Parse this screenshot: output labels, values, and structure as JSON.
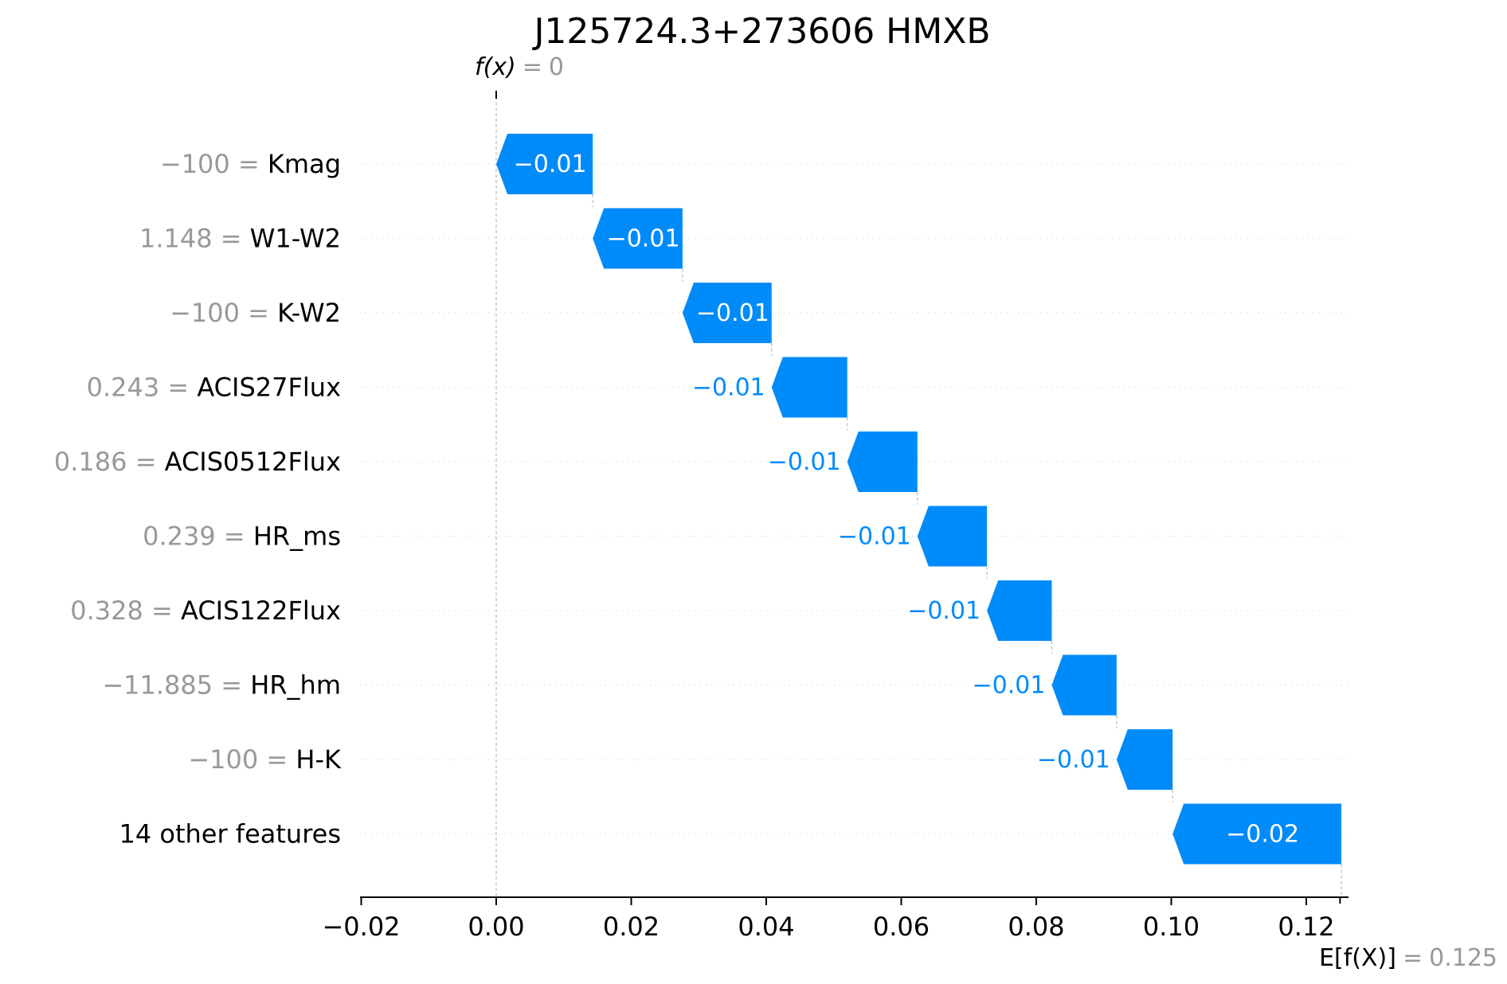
{
  "chart_data": {
    "type": "waterfall",
    "title": "J125724.3+273606 HMXB",
    "top_annotation": {
      "label": "f(x)",
      "equals": "=",
      "value": "0"
    },
    "bottom_annotation": {
      "label": "E[f(X)]",
      "equals": "=",
      "value": "0.125"
    },
    "base_value": 0.125,
    "output_value": 0,
    "xlim": [
      -0.02,
      0.126
    ],
    "xticks": [
      {
        "value": -0.02,
        "label": "−0.02"
      },
      {
        "value": 0.0,
        "label": "0.00"
      },
      {
        "value": 0.02,
        "label": "0.02"
      },
      {
        "value": 0.04,
        "label": "0.04"
      },
      {
        "value": 0.06,
        "label": "0.06"
      },
      {
        "value": 0.08,
        "label": "0.08"
      },
      {
        "value": 0.1,
        "label": "0.10"
      },
      {
        "value": 0.12,
        "label": "0.12"
      }
    ],
    "bars": [
      {
        "feature_value": "−100",
        "feature": "Kmag",
        "start": 0.0143,
        "end": 0.0,
        "label": "−0.01"
      },
      {
        "feature_value": "1.148",
        "feature": "W1-W2",
        "start": 0.0276,
        "end": 0.0143,
        "label": "−0.01"
      },
      {
        "feature_value": "−100",
        "feature": "K-W2",
        "start": 0.0408,
        "end": 0.0276,
        "label": "−0.01"
      },
      {
        "feature_value": "0.243",
        "feature": "ACIS27Flux",
        "start": 0.052,
        "end": 0.0408,
        "label": "−0.01"
      },
      {
        "feature_value": "0.186",
        "feature": "ACIS0512Flux",
        "start": 0.0624,
        "end": 0.052,
        "label": "−0.01"
      },
      {
        "feature_value": "0.239",
        "feature": "HR_ms",
        "start": 0.0727,
        "end": 0.0624,
        "label": "−0.01"
      },
      {
        "feature_value": "0.328",
        "feature": "ACIS122Flux",
        "start": 0.0823,
        "end": 0.0727,
        "label": "−0.01"
      },
      {
        "feature_value": "−11.885",
        "feature": "HR_hm",
        "start": 0.0919,
        "end": 0.0823,
        "label": "−0.01"
      },
      {
        "feature_value": "−100",
        "feature": "H-K",
        "start": 0.1002,
        "end": 0.0919,
        "label": "−0.01"
      },
      {
        "feature_value": "",
        "feature": "14 other features",
        "start": 0.1252,
        "end": 0.1002,
        "label": "−0.02"
      }
    ]
  }
}
